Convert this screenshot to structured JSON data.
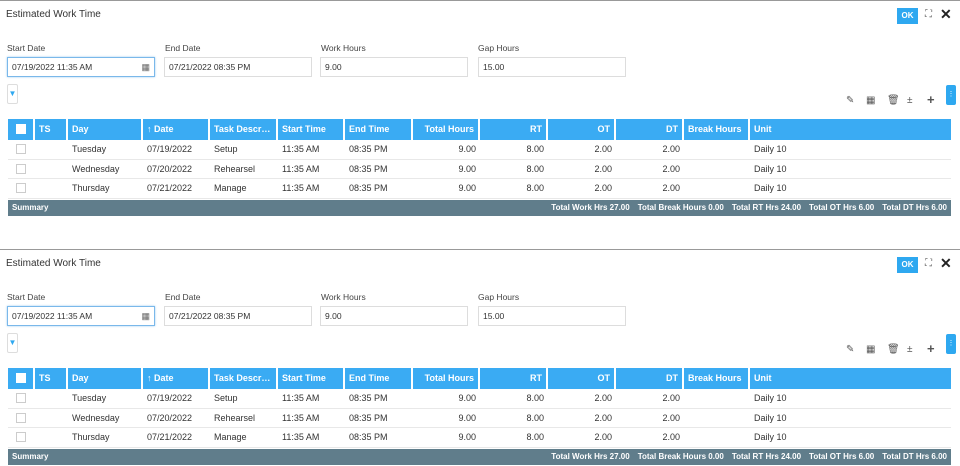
{
  "panels": [
    {
      "title": "Estimated Work Time",
      "ok_label": "OK",
      "form": {
        "start_date_label": "Start Date",
        "start_date": "07/19/2022 11:35 AM",
        "end_date_label": "End Date",
        "end_date": "07/21/2022 08:35 PM",
        "work_hours_label": "Work Hours",
        "work_hours": "9.00",
        "gap_hours_label": "Gap Hours",
        "gap_hours": "15.00"
      },
      "columns": [
        "TS",
        "Day",
        "↑ Date",
        "Task Descript...",
        "Start Time",
        "End Time",
        "Total Hours",
        "RT",
        "OT",
        "DT",
        "Break Hours",
        "Unit"
      ],
      "rows": [
        {
          "ts": "",
          "day": "Tuesday",
          "date": "07/19/2022",
          "task": "Setup",
          "start": "11:35 AM",
          "end": "08:35 PM",
          "total": "9.00",
          "rt": "8.00",
          "ot": "2.00",
          "dt": "2.00",
          "brk": "",
          "unit": "Daily 10"
        },
        {
          "ts": "",
          "day": "Wednesday",
          "date": "07/20/2022",
          "task": "Rehearsel",
          "start": "11:35 AM",
          "end": "08:35 PM",
          "total": "9.00",
          "rt": "8.00",
          "ot": "2.00",
          "dt": "2.00",
          "brk": "",
          "unit": "Daily 10"
        },
        {
          "ts": "",
          "day": "Thursday",
          "date": "07/21/2022",
          "task": "Manage",
          "start": "11:35 AM",
          "end": "08:35 PM",
          "total": "9.00",
          "rt": "8.00",
          "ot": "2.00",
          "dt": "2.00",
          "brk": "",
          "unit": "Daily 10"
        }
      ],
      "summary": {
        "label": "Summary",
        "work": "Total Work Hrs 27.00",
        "break": "Total Break Hours 0.00",
        "rt": "Total RT Hrs 24.00",
        "ot": "Total OT Hrs 6.00",
        "dt": "Total DT Hrs 6.00"
      }
    },
    {
      "title": "Estimated Work Time",
      "ok_label": "OK",
      "form": {
        "start_date_label": "Start Date",
        "start_date": "07/19/2022 11:35 AM",
        "end_date_label": "End Date",
        "end_date": "07/21/2022 08:35 PM",
        "work_hours_label": "Work Hours",
        "work_hours": "9.00",
        "gap_hours_label": "Gap Hours",
        "gap_hours": "15.00"
      },
      "columns": [
        "TS",
        "Day",
        "↑ Date",
        "Task Descript...",
        "Start Time",
        "End Time",
        "Total Hours",
        "RT",
        "OT",
        "DT",
        "Break Hours",
        "Unit"
      ],
      "rows": [
        {
          "ts": "",
          "day": "Tuesday",
          "date": "07/19/2022",
          "task": "Setup",
          "start": "11:35 AM",
          "end": "08:35 PM",
          "total": "9.00",
          "rt": "8.00",
          "ot": "2.00",
          "dt": "2.00",
          "brk": "",
          "unit": "Daily 10"
        },
        {
          "ts": "",
          "day": "Wednesday",
          "date": "07/20/2022",
          "task": "Rehearsel",
          "start": "11:35 AM",
          "end": "08:35 PM",
          "total": "9.00",
          "rt": "8.00",
          "ot": "2.00",
          "dt": "2.00",
          "brk": "",
          "unit": "Daily 10"
        },
        {
          "ts": "",
          "day": "Thursday",
          "date": "07/21/2022",
          "task": "Manage",
          "start": "11:35 AM",
          "end": "08:35 PM",
          "total": "9.00",
          "rt": "8.00",
          "ot": "2.00",
          "dt": "2.00",
          "brk": "",
          "unit": "Daily 10"
        }
      ],
      "summary": {
        "label": "Summary",
        "work": "Total Work Hrs 27.00",
        "break": "Total Break Hours 0.00",
        "rt": "Total RT Hrs 24.00",
        "ot": "Total OT Hrs 6.00",
        "dt": "Total DT Hrs 6.00"
      }
    }
  ],
  "accent_color": "#3aabf3",
  "summary_color": "#607d8b"
}
